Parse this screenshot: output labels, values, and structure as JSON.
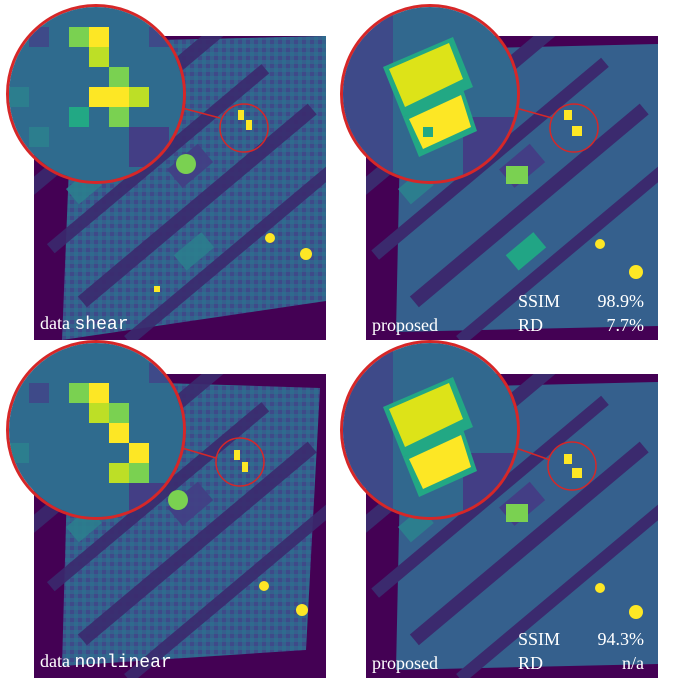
{
  "panels": {
    "top_left": {
      "label_prefix": "data",
      "label_mode": "shear"
    },
    "top_right": {
      "method": "proposed",
      "metrics": [
        {
          "name": "SSIM",
          "value": "98.9%"
        },
        {
          "name": "RD",
          "value": "7.7%"
        }
      ]
    },
    "bottom_left": {
      "label_prefix": "data",
      "label_mode": "nonlinear"
    },
    "bottom_right": {
      "method": "proposed",
      "metrics": [
        {
          "name": "SSIM",
          "value": "94.3%"
        },
        {
          "name": "RD",
          "value": "n/a"
        }
      ]
    }
  },
  "colors": {
    "background": "#440154",
    "map_base": "#35608d",
    "map_dark": "#3b2a6e",
    "highlight": "#fde725",
    "mid_green": "#21a585",
    "zoom_ring": "#d62728"
  }
}
